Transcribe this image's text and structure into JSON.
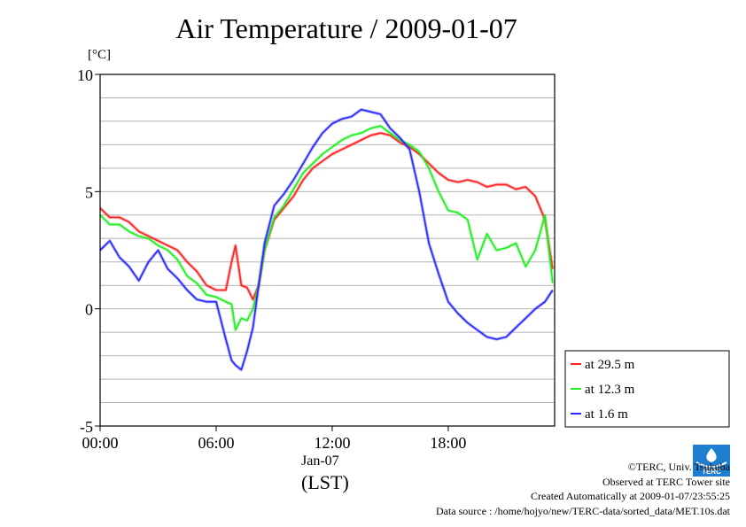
{
  "chart_data": {
    "type": "line",
    "title": "Air Temperature / 2009-01-07",
    "ylabel": "[°C]",
    "xlabel": "(LST)",
    "x_sublabel": "Jan-07",
    "xlim": [
      0,
      23.5
    ],
    "ylim": [
      -5,
      10
    ],
    "x_ticks": [
      0,
      6,
      12,
      18
    ],
    "x_tick_labels": [
      "00:00",
      "06:00",
      "12:00",
      "18:00"
    ],
    "y_ticks": [
      -5,
      0,
      5,
      10
    ],
    "y_tick_labels": [
      "-5",
      "0",
      "5",
      "10"
    ],
    "grid": true,
    "legend_position": "right-bottom",
    "series": [
      {
        "name": "at 29.5 m",
        "color": "#ff2020",
        "x": [
          0,
          0.5,
          1,
          1.5,
          2,
          2.5,
          3,
          3.5,
          4,
          4.5,
          5,
          5.5,
          6,
          6.5,
          6.8,
          7,
          7.3,
          7.6,
          7.9,
          8.2,
          8.5,
          9,
          9.5,
          10,
          10.5,
          11,
          11.5,
          12,
          12.5,
          13,
          13.5,
          14,
          14.5,
          15,
          15.5,
          16,
          16.5,
          17,
          17.5,
          18,
          18.5,
          19,
          19.5,
          20,
          20.5,
          21,
          21.5,
          22,
          22.5,
          23,
          23.4
        ],
        "values": [
          4.3,
          3.9,
          3.9,
          3.7,
          3.3,
          3.1,
          2.9,
          2.7,
          2.5,
          2.0,
          1.6,
          1.0,
          0.8,
          0.8,
          2.0,
          2.7,
          1.0,
          0.9,
          0.4,
          1.0,
          2.5,
          3.8,
          4.3,
          4.8,
          5.5,
          6.0,
          6.3,
          6.6,
          6.8,
          7.0,
          7.2,
          7.4,
          7.5,
          7.4,
          7.1,
          6.9,
          6.6,
          6.2,
          5.8,
          5.5,
          5.4,
          5.5,
          5.4,
          5.2,
          5.3,
          5.3,
          5.1,
          5.2,
          4.8,
          3.8,
          1.7
        ]
      },
      {
        "name": "at 12.3 m",
        "color": "#20ee20",
        "x": [
          0,
          0.5,
          1,
          1.5,
          2,
          2.5,
          3,
          3.5,
          4,
          4.5,
          5,
          5.5,
          6,
          6.5,
          6.8,
          7,
          7.3,
          7.6,
          7.9,
          8.2,
          8.5,
          9,
          9.5,
          10,
          10.5,
          11,
          11.5,
          12,
          12.5,
          13,
          13.5,
          14,
          14.5,
          15,
          15.5,
          16,
          16.5,
          17,
          17.5,
          18,
          18.5,
          19,
          19.5,
          20,
          20.5,
          21,
          21.5,
          22,
          22.5,
          23,
          23.4
        ],
        "values": [
          4.0,
          3.6,
          3.6,
          3.3,
          3.1,
          3.0,
          2.7,
          2.5,
          2.1,
          1.4,
          1.1,
          0.6,
          0.5,
          0.3,
          0.2,
          -0.9,
          -0.4,
          -0.5,
          0.0,
          1.0,
          2.5,
          3.9,
          4.4,
          5.1,
          5.8,
          6.2,
          6.6,
          6.9,
          7.2,
          7.4,
          7.5,
          7.7,
          7.8,
          7.5,
          7.2,
          7.0,
          6.7,
          6.0,
          5.0,
          4.2,
          4.1,
          3.8,
          2.1,
          3.2,
          2.5,
          2.6,
          2.8,
          1.8,
          2.5,
          4.0,
          1.1
        ]
      },
      {
        "name": "at 1.6 m",
        "color": "#2828ff",
        "x": [
          0,
          0.5,
          1,
          1.5,
          2,
          2.5,
          3,
          3.5,
          4,
          4.5,
          5,
          5.5,
          6,
          6.5,
          6.8,
          7,
          7.3,
          7.6,
          7.9,
          8.2,
          8.5,
          9,
          9.5,
          10,
          10.5,
          11,
          11.5,
          12,
          12.5,
          13,
          13.5,
          14,
          14.5,
          15,
          15.5,
          16,
          16.5,
          17,
          17.5,
          18,
          18.5,
          19,
          19.5,
          20,
          20.5,
          21,
          21.5,
          22,
          22.5,
          23,
          23.4
        ],
        "values": [
          2.5,
          2.9,
          2.2,
          1.8,
          1.2,
          2.0,
          2.5,
          1.7,
          1.3,
          0.8,
          0.4,
          0.3,
          0.3,
          -1.3,
          -2.2,
          -2.4,
          -2.6,
          -1.8,
          -0.8,
          1.0,
          2.8,
          4.4,
          4.9,
          5.5,
          6.2,
          6.9,
          7.5,
          7.9,
          8.1,
          8.2,
          8.5,
          8.4,
          8.3,
          7.7,
          7.3,
          6.8,
          5.0,
          2.8,
          1.5,
          0.3,
          -0.2,
          -0.6,
          -0.9,
          -1.2,
          -1.3,
          -1.2,
          -0.8,
          -0.4,
          0.0,
          0.3,
          0.8
        ]
      }
    ]
  },
  "footer": {
    "copyright": "©TERC, Univ. Tsukuba",
    "observed": "Observed at TERC Tower site",
    "created": "Created Automatically at 2009-01-07/23:55:25",
    "source": "Data source : /home/hojyo/new/TERC-data/sorted_data/MET.10s.dat"
  },
  "logo": {
    "icon": "terc-logo-icon",
    "text": "TERC",
    "color": "#1e7fd0"
  }
}
